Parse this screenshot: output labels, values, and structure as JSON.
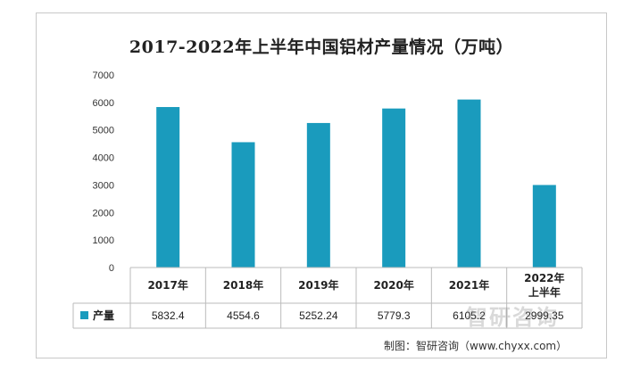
{
  "chart_data": {
    "type": "bar",
    "title": "2017-2022年上半年中国铝材产量情况（万吨）",
    "categories": [
      "2017年",
      "2018年",
      "2019年",
      "2020年",
      "2021年",
      "2022年上半年"
    ],
    "series": [
      {
        "name": "产量",
        "values": [
          5832.4,
          4554.6,
          5252.24,
          5779.3,
          6105.2,
          2999.35
        ],
        "labels": [
          "5832.4",
          "4554.6",
          "5252.24",
          "5779.3",
          "6105.2",
          "2999.35"
        ]
      }
    ],
    "ylim": [
      0,
      7000
    ],
    "yticks": [
      0,
      1000,
      2000,
      3000,
      4000,
      5000,
      6000,
      7000
    ],
    "grid": false,
    "legend": "data-table",
    "bar_color": "#1a9bbd"
  },
  "watermark": "智研咨询",
  "source": "制图：智研咨询（www.chyxx.com）"
}
